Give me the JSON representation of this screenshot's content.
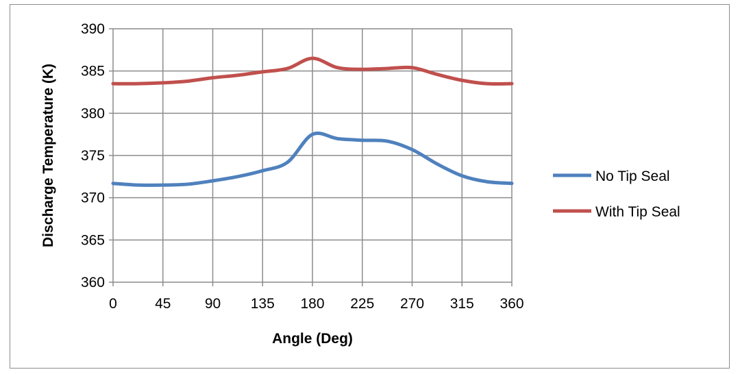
{
  "chart_data": {
    "type": "line",
    "title": "",
    "xlabel": "Angle (Deg)",
    "ylabel": "Discharge Temperature (K)",
    "xlim": [
      0,
      360
    ],
    "ylim": [
      360,
      390
    ],
    "x_ticks": [
      "0",
      "45",
      "90",
      "135",
      "180",
      "225",
      "270",
      "315",
      "360"
    ],
    "y_ticks": [
      "360",
      "365",
      "370",
      "375",
      "380",
      "385",
      "390"
    ],
    "grid": true,
    "legend_position": "right",
    "series": [
      {
        "name": "No Tip Seal",
        "color": "#4f81bd",
        "x": [
          0,
          22.5,
          45,
          67.5,
          90,
          112.5,
          135,
          157.5,
          180,
          202.5,
          225,
          247.5,
          270,
          292.5,
          315,
          337.5,
          360
        ],
        "y": [
          371.7,
          371.5,
          371.5,
          371.6,
          372.0,
          372.5,
          373.2,
          374.2,
          377.5,
          377.0,
          376.8,
          376.7,
          375.7,
          374.0,
          372.6,
          371.9,
          371.7
        ]
      },
      {
        "name": "With Tip Seal",
        "color": "#c0504d",
        "x": [
          0,
          22.5,
          45,
          67.5,
          90,
          112.5,
          135,
          157.5,
          180,
          202.5,
          225,
          247.5,
          270,
          292.5,
          315,
          337.5,
          360
        ],
        "y": [
          383.5,
          383.5,
          383.6,
          383.8,
          384.2,
          384.5,
          384.9,
          385.3,
          386.5,
          385.4,
          385.2,
          385.3,
          385.4,
          384.6,
          383.9,
          383.5,
          383.5
        ]
      }
    ]
  }
}
